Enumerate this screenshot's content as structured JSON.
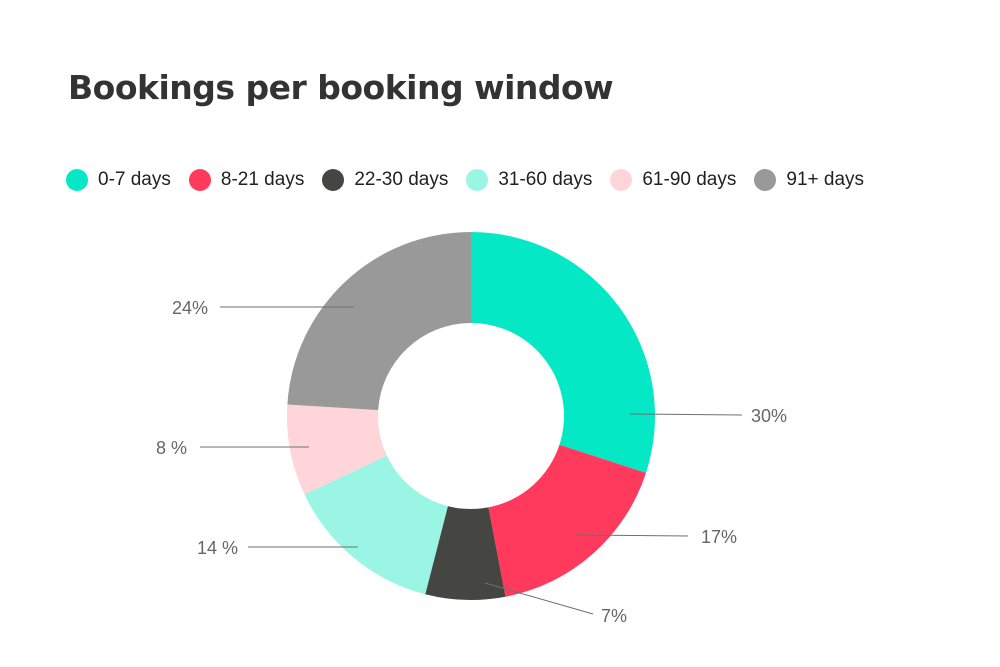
{
  "title": "Bookings per booking window",
  "chart_data": {
    "type": "pie",
    "donut": true,
    "title": "Bookings per booking window",
    "categories": [
      "0-7 days",
      "8-21 days",
      "22-30 days",
      "31-60 days",
      "61-90 days",
      "91+ days"
    ],
    "values": [
      30,
      17,
      7,
      14,
      8,
      24
    ],
    "value_labels": [
      "30%",
      "17%",
      "7%",
      "14 %",
      "8 %",
      "24%"
    ],
    "colors": [
      "#05E8C6",
      "#FF3A5C",
      "#454541",
      "#9BF5E5",
      "#FFD5DA",
      "#999999"
    ],
    "legend_placement": "top-left",
    "grid": false
  }
}
